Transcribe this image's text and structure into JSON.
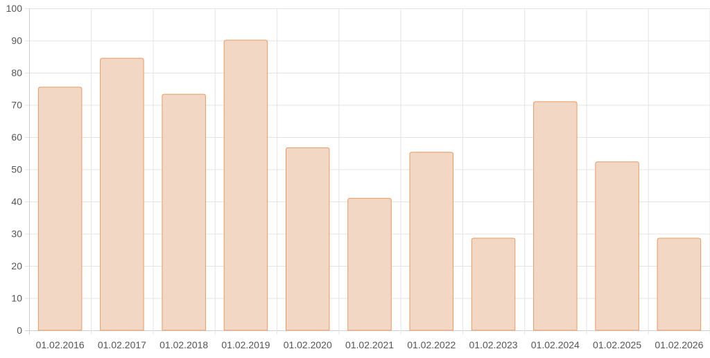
{
  "colors": {
    "bar_fill": "#f2d7c5",
    "bar_stroke": "#e79a62",
    "grid": "#e3e3e3",
    "tick_text": "#555555"
  },
  "chart_data": {
    "type": "bar",
    "title": "",
    "xlabel": "",
    "ylabel": "",
    "categories": [
      "01.02.2016",
      "01.02.2017",
      "01.02.2018",
      "01.02.2019",
      "01.02.2020",
      "01.02.2021",
      "01.02.2022",
      "01.02.2023",
      "01.02.2024",
      "01.02.2025",
      "01.02.2026"
    ],
    "values": [
      75.5,
      84.5,
      73.3,
      90.1,
      56.7,
      41.0,
      55.3,
      28.6,
      71.0,
      52.3,
      28.6
    ],
    "ylim": [
      0,
      100
    ],
    "yticks": [
      "0",
      "10",
      "20",
      "30",
      "40",
      "50",
      "60",
      "70",
      "80",
      "90",
      "100"
    ],
    "grid": true,
    "legend": "none"
  }
}
